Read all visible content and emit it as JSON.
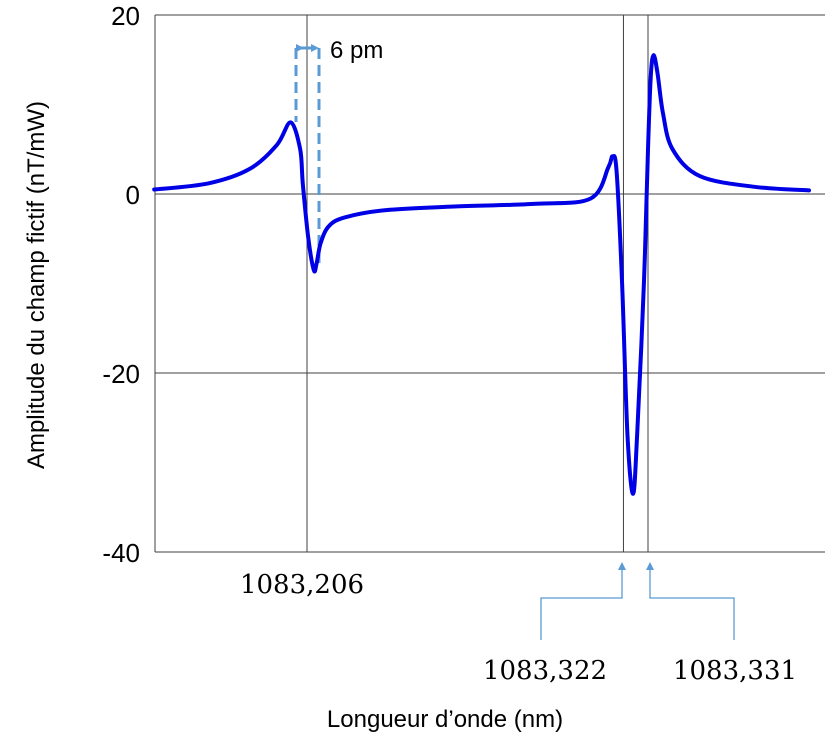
{
  "chart_data": {
    "type": "line",
    "ylabel": "Amplitude du champ fictif (nT/mW)",
    "xlabel": "Longueur d’onde (nm)",
    "ylim": [
      -40,
      20
    ],
    "y_ticks": [
      "20",
      "0",
      "-20",
      "-40"
    ],
    "y_tick_values": [
      20,
      0,
      -20,
      -40
    ],
    "grid": true,
    "series": [
      {
        "color": "#0000e6",
        "x": [
          1083.15,
          1083.17,
          1083.185,
          1083.195,
          1083.2,
          1083.2035,
          1083.2045,
          1083.2065,
          1083.2085,
          1083.2095,
          1083.211,
          1083.214,
          1083.22,
          1083.235,
          1083.26,
          1083.29,
          1083.31,
          1083.3165,
          1083.318,
          1083.3195,
          1083.3215,
          1083.3235,
          1083.3255,
          1083.327,
          1083.3295,
          1083.331,
          1083.332,
          1083.333,
          1083.3345,
          1083.3365,
          1083.34,
          1083.35,
          1083.37,
          1083.39
        ],
        "y": [
          0.5,
          1.2,
          2.8,
          5.5,
          8.0,
          5.0,
          1.0,
          -5.0,
          -8.5,
          -7.8,
          -5.5,
          -3.6,
          -2.6,
          -1.8,
          -1.4,
          -1.1,
          -0.5,
          3.0,
          4.2,
          2.5,
          -10.0,
          -27.0,
          -33.5,
          -27.0,
          -10.0,
          5.0,
          13.0,
          15.5,
          13.5,
          9.0,
          5.0,
          2.0,
          0.8,
          0.4
        ]
      }
    ]
  },
  "annotations": {
    "spacing_label": "6 pm",
    "marker_1": "1083,206",
    "marker_2": "1083,322",
    "marker_3": "1083,331",
    "marker_1_value": 1083.206,
    "marker_2_value": 1083.322,
    "marker_3_value": 1083.331,
    "arrow_color": "#5b9bd5"
  }
}
